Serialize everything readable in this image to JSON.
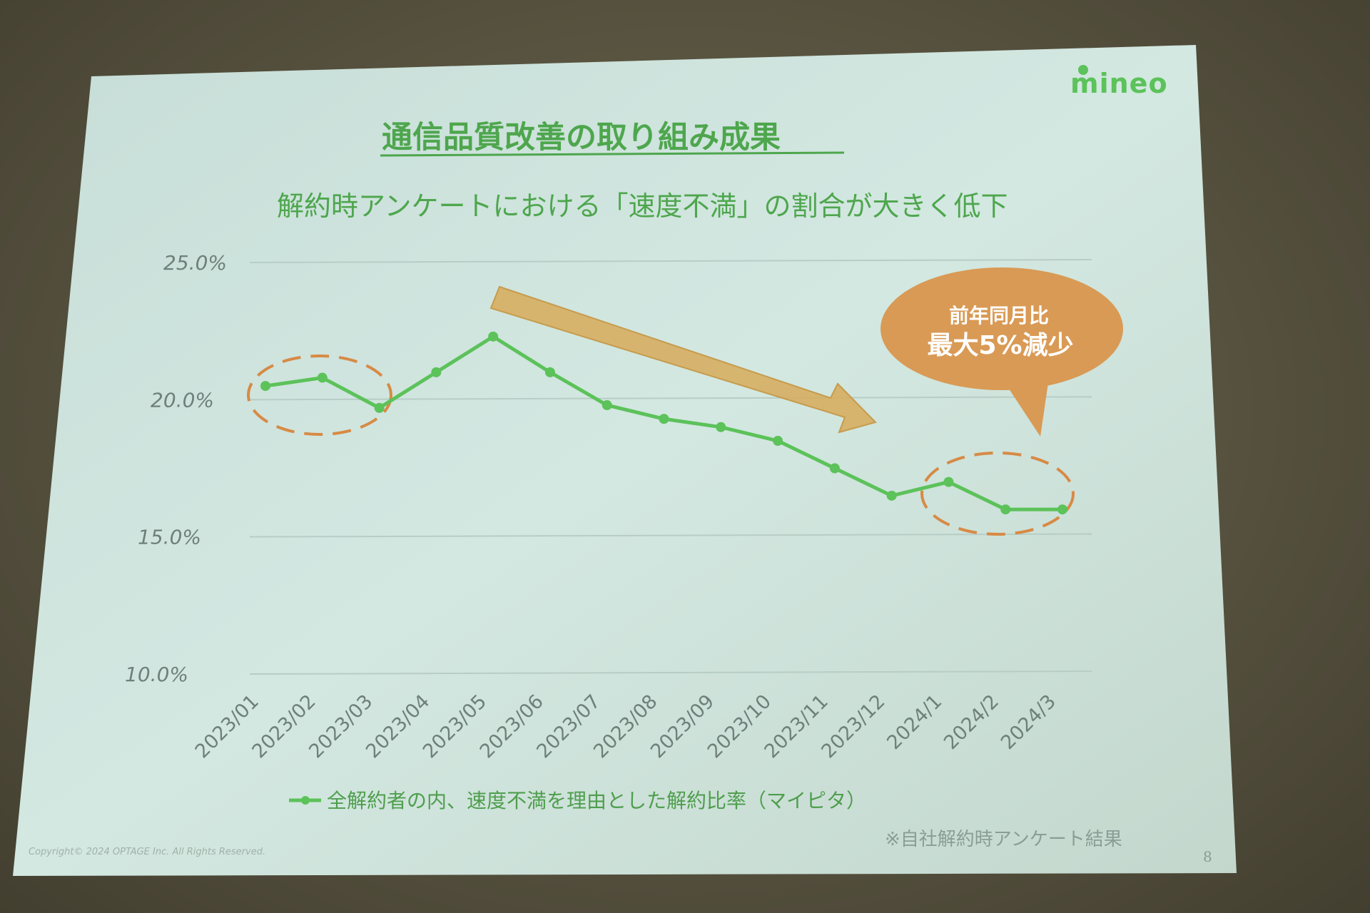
{
  "slide": {
    "logo": "mineo",
    "title": "通信品質改善の取り組み成果",
    "subtitle": "解約時アンケートにおける「速度不満」の割合が大きく低下",
    "callout": {
      "line1": "前年同月比",
      "line2": "最大5%減少"
    },
    "source_note": "※自社解約時アンケート結果",
    "copyright": "Copyright© 2024 OPTAGE Inc. All Rights Reserved.",
    "page_number": "8"
  },
  "colors": {
    "series": "#5cc25a",
    "title": "#4ea64d",
    "callout": "#d99a55",
    "arrow": "#d6ad5f",
    "highlight_ellipse": "#d78a45",
    "slide_background": "#cfe5de"
  },
  "chart_data": {
    "type": "line",
    "categories": [
      "2023/01",
      "2023/02",
      "2023/03",
      "2023/04",
      "2023/05",
      "2023/06",
      "2023/07",
      "2023/08",
      "2023/09",
      "2023/10",
      "2023/11",
      "2023/12",
      "2024/1",
      "2024/2",
      "2024/3"
    ],
    "series": [
      {
        "name": "全解約者の内、速度不満を理由とした解約比率（マイピタ）",
        "values": [
          20.5,
          20.8,
          19.7,
          21.0,
          22.3,
          21.0,
          19.8,
          19.3,
          19.0,
          18.5,
          17.5,
          16.5,
          17.0,
          16.0,
          16.0
        ]
      }
    ],
    "yticks": [
      "25.0%",
      "20.0%",
      "15.0%",
      "10.0%"
    ],
    "ylim": [
      10,
      25
    ],
    "grid": true,
    "legend": "bottom"
  }
}
